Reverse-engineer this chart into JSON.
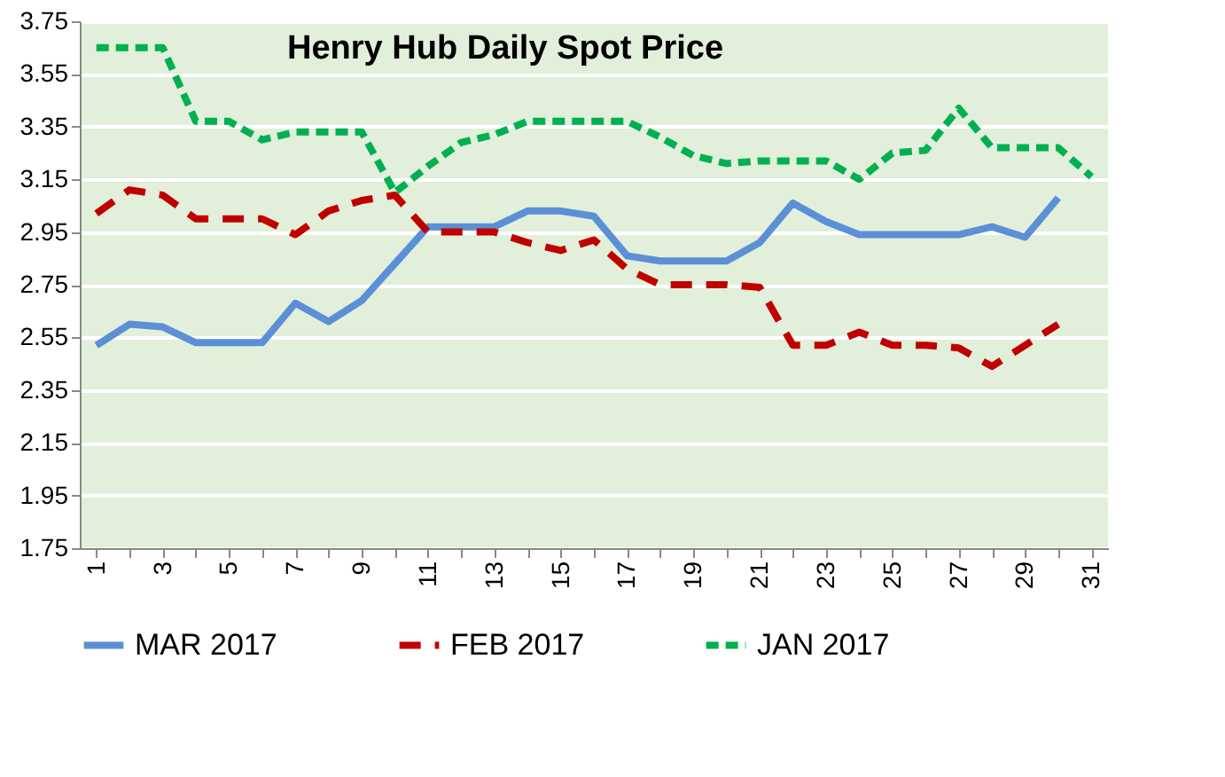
{
  "chart_data": {
    "type": "line",
    "title": "Henry Hub Daily Spot Price",
    "categories": [
      "1",
      null,
      "3",
      null,
      "5",
      null,
      "7",
      null,
      "9",
      null,
      "11",
      null,
      "13",
      null,
      "15",
      null,
      "17",
      null,
      "19",
      null,
      "21",
      null,
      "23",
      null,
      "25",
      null,
      "27",
      null,
      "29",
      null,
      "31"
    ],
    "ylim": [
      1.75,
      3.75
    ],
    "yticks": [
      1.75,
      1.95,
      2.15,
      2.35,
      2.55,
      2.75,
      2.95,
      3.15,
      3.35,
      3.55,
      3.75
    ],
    "grid": "y",
    "legend": "bottom",
    "marker": "none",
    "series": [
      {
        "name": "MAR 2017",
        "color": "#5b8fd6",
        "line_style": "solid",
        "values": [
          2.52,
          2.6,
          2.59,
          2.53,
          2.53,
          2.53,
          2.68,
          2.61,
          2.69,
          2.83,
          2.97,
          2.97,
          2.97,
          3.03,
          3.03,
          3.01,
          2.86,
          2.84,
          2.84,
          2.84,
          2.91,
          3.06,
          2.99,
          2.94,
          2.94,
          2.94,
          2.94,
          2.97,
          2.93,
          3.08,
          null
        ]
      },
      {
        "name": "FEB 2017",
        "color": "#c00000",
        "line_style": "dashed",
        "values": [
          3.02,
          3.11,
          3.09,
          3.0,
          3.0,
          3.0,
          2.94,
          3.03,
          3.07,
          3.09,
          2.95,
          2.95,
          2.95,
          2.91,
          2.88,
          2.92,
          2.81,
          2.75,
          2.75,
          2.75,
          2.74,
          2.52,
          2.52,
          2.57,
          2.52,
          2.52,
          2.51,
          2.44,
          2.52,
          2.6,
          null
        ]
      },
      {
        "name": "JAN 2017",
        "color": "#00b050",
        "line_style": "dotted",
        "values": [
          3.65,
          3.65,
          3.65,
          3.37,
          3.37,
          3.3,
          3.33,
          3.33,
          3.33,
          3.1,
          3.2,
          3.29,
          3.32,
          3.37,
          3.37,
          3.37,
          3.37,
          3.31,
          3.24,
          3.21,
          3.22,
          3.22,
          3.22,
          3.15,
          3.25,
          3.26,
          3.42,
          3.27,
          3.27,
          3.27,
          3.16
        ]
      }
    ]
  }
}
